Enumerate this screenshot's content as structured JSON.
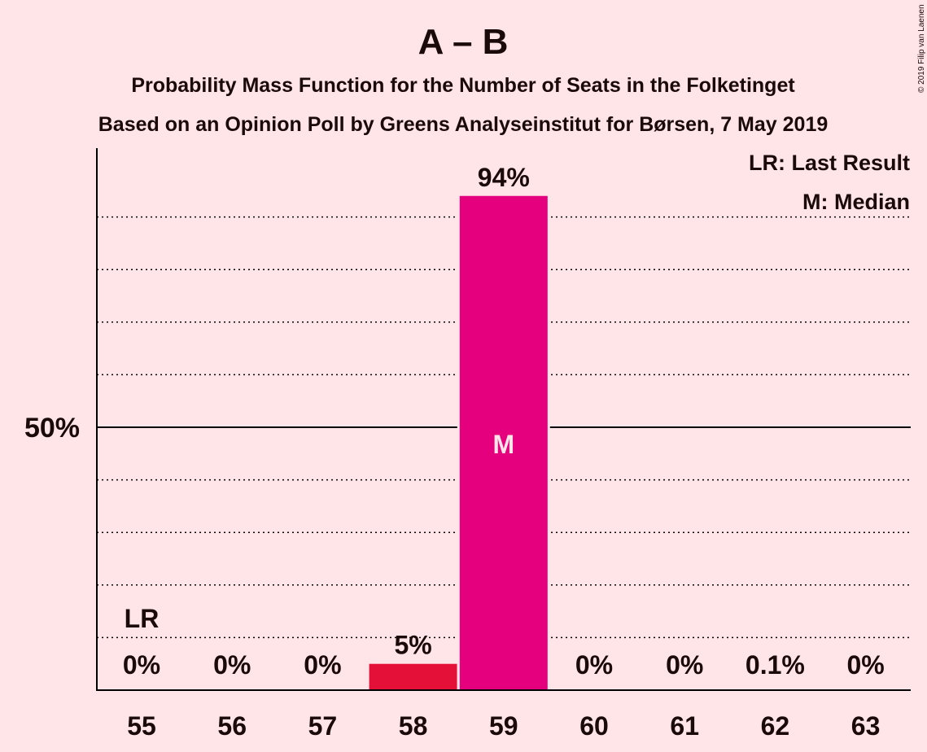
{
  "chart_data": {
    "type": "bar",
    "title": "A – B",
    "subtitle_1": "Probability Mass Function for the Number of Seats in the Folketinget",
    "subtitle_2": "Based on an Opinion Poll by Greens Analyseinstitut for Børsen, 7 May 2019",
    "copyright": "© 2019 Filip van Laenen",
    "legend": [
      "LR: Last Result",
      "M: Median"
    ],
    "legend_position": "top-right",
    "xlabel": "",
    "ylabel": "",
    "ylim": [
      0,
      100
    ],
    "y_tick_label": "50%",
    "y_tick_value": 50,
    "y_dotted_gridlines": [
      10,
      20,
      30,
      40,
      60,
      70,
      80,
      90
    ],
    "categories": [
      "55",
      "56",
      "57",
      "58",
      "59",
      "60",
      "61",
      "62",
      "63"
    ],
    "values": [
      0,
      0,
      0,
      5,
      94,
      0,
      0,
      0.1,
      0
    ],
    "value_labels": [
      "0%",
      "0%",
      "0%",
      "5%",
      "94%",
      "0%",
      "0%",
      "0.1%",
      "0%"
    ],
    "bar_colors": [
      "#E51038",
      "#E51038",
      "#E51038",
      "#E51038",
      "#E5007D",
      "#E5007D",
      "#E5007D",
      "#E5007D",
      "#E5007D"
    ],
    "last_result_index": 0,
    "last_result_marker": "LR",
    "median_index": 4,
    "median_marker": "M"
  }
}
